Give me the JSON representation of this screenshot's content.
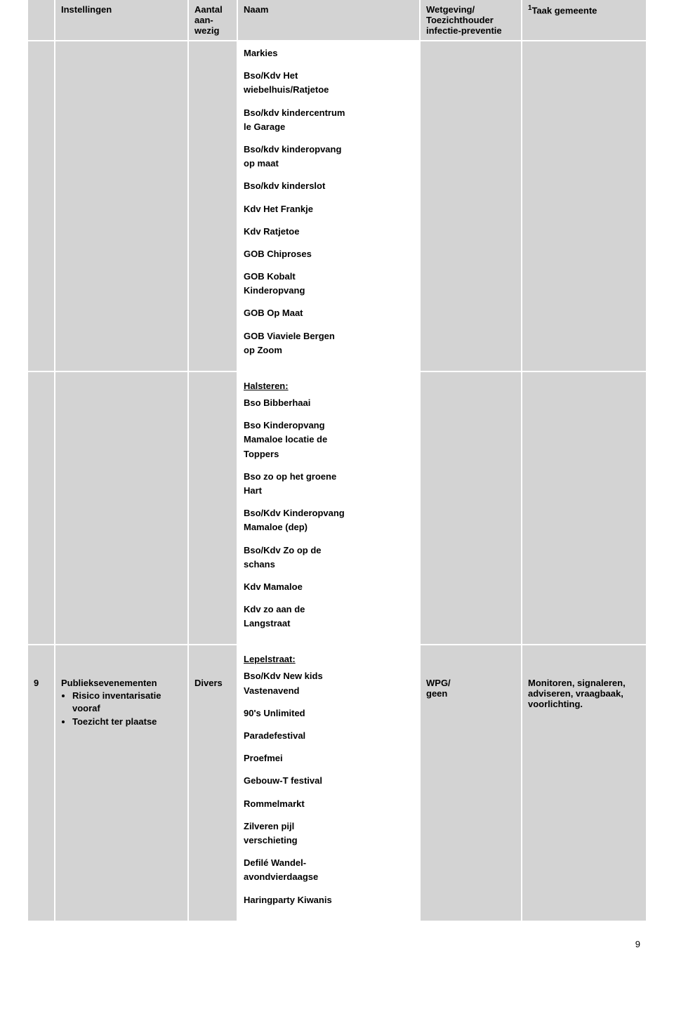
{
  "header": {
    "col_num": "",
    "col_instellingen": "Instellingen",
    "col_aantal": "Aantal aan-wezig",
    "col_naam": "Naam",
    "col_wetgeving": "Wetgeving/ Toezichthouder infectie-preventie",
    "col_taak_sup": "1",
    "col_taak": "Taak gemeente"
  },
  "row1_naam_lines": [
    "Markies",
    "Bso/Kdv Het",
    "wiebelhuis/Ratjetoe",
    "Bso/kdv kindercentrum",
    "le Garage",
    "Bso/kdv kinderopvang",
    "op maat",
    "Bso/kdv kinderslot",
    "Kdv Het Frankje",
    "Kdv Ratjetoe",
    "GOB Chiproses",
    "GOB Kobalt",
    "Kinderopvang",
    "GOB Op Maat",
    "GOB Viaviele Bergen",
    "op Zoom"
  ],
  "row2": {
    "group_header": "Halsteren:",
    "lines": [
      "Bso Bibberhaai",
      "Bso Kinderopvang",
      "Mamaloe locatie de",
      "Toppers",
      "Bso zo op het groene",
      "Hart",
      "Bso/Kdv Kinderopvang",
      "Mamaloe (dep)",
      "Bso/Kdv Zo op de",
      "schans",
      "Kdv Mamaloe",
      "Kdv zo aan de",
      "Langstraat"
    ]
  },
  "row3": {
    "num": "9",
    "group_header": "Lepelstraat:",
    "group_line": "Bso/Kdv New kids",
    "instellingen_title": "Publieksevenementen",
    "instellingen_bullets": [
      "Risico inventarisatie vooraf",
      "Toezicht ter plaatse"
    ],
    "aantal": "Divers",
    "naam_lines": [
      "Vastenavend",
      "90's Unlimited",
      "Paradefestival",
      "Proefmei",
      "Gebouw-T festival",
      "Rommelmarkt",
      "Zilveren pijl",
      "verschieting",
      "Defilé Wandel-",
      "avondvierdaagse",
      "Haringparty Kiwanis"
    ],
    "wetgeving": "WPG/\ngeen",
    "taak": "Monitoren, signaleren, adviseren, vraagbaak, voorlichting."
  },
  "page_number": "9"
}
